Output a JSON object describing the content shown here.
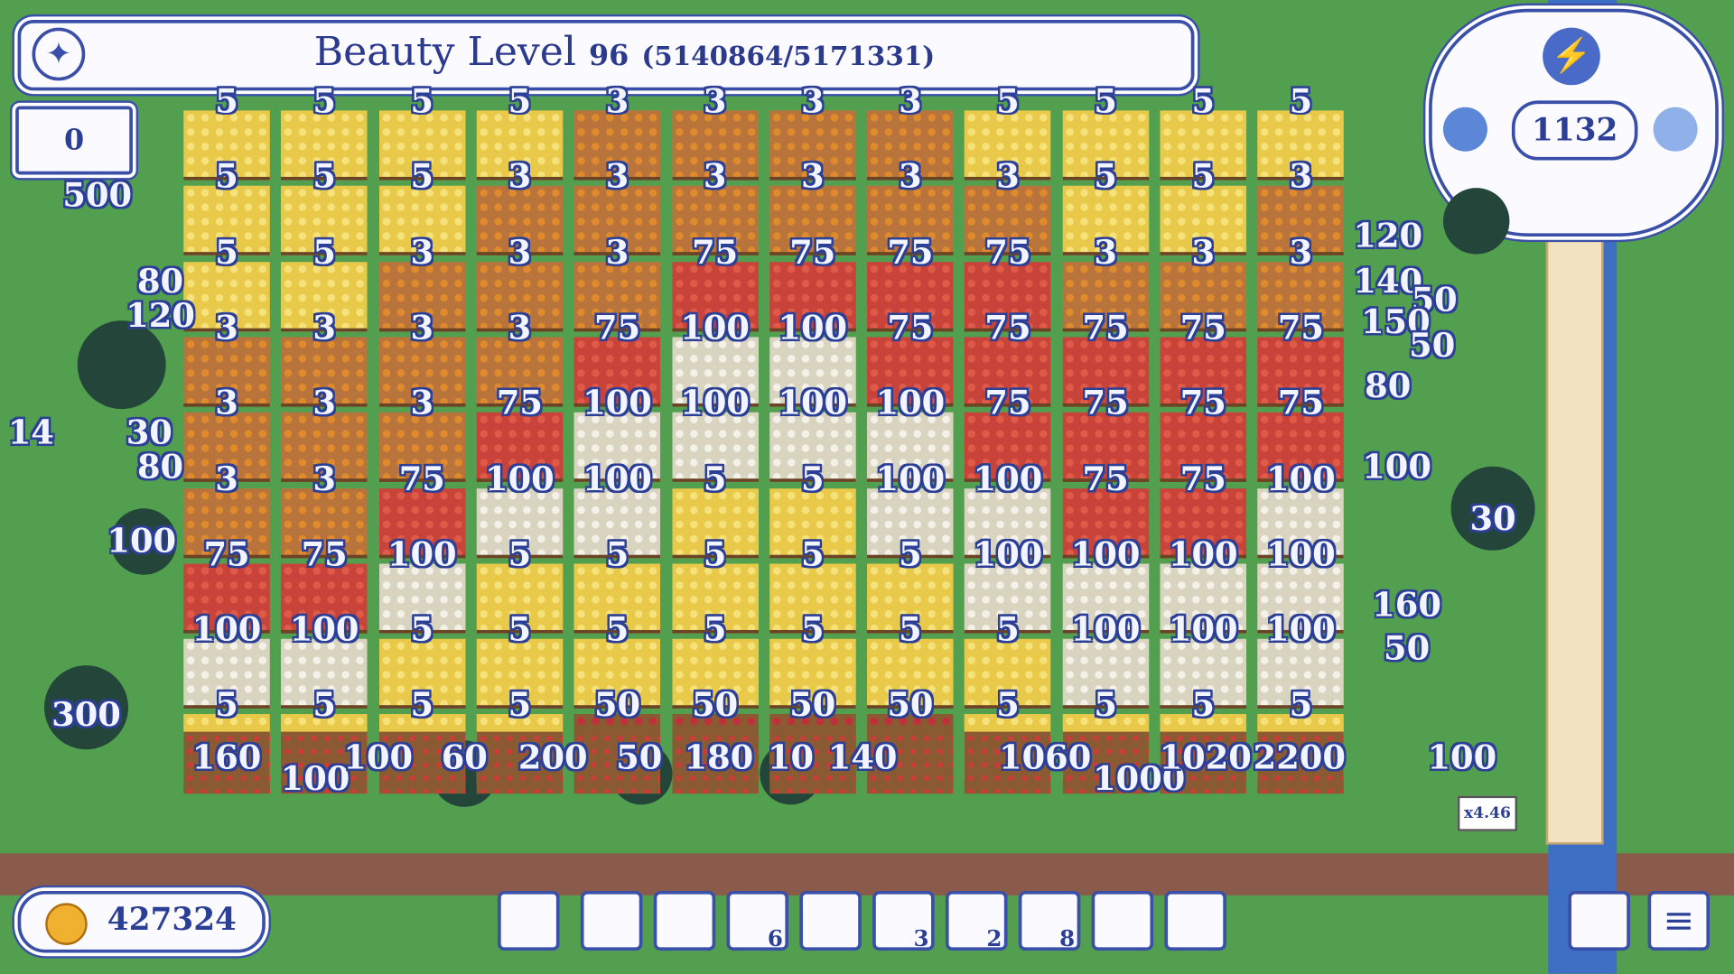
{
  "header": {
    "title": "Beauty Level",
    "level": "96",
    "progress": "(5140864/5171331)"
  },
  "counter": "0",
  "energy": "1132",
  "coins": "427324",
  "multiplier": "x4.46",
  "toolbar": {
    "counts": [
      "6",
      "3",
      "2",
      "8"
    ]
  },
  "grid": {
    "rows": [
      [
        5,
        5,
        5,
        5,
        3,
        3,
        3,
        3,
        5,
        5,
        5,
        5
      ],
      [
        5,
        5,
        5,
        3,
        3,
        3,
        3,
        3,
        3,
        5,
        5,
        3
      ],
      [
        5,
        5,
        3,
        3,
        3,
        75,
        75,
        75,
        75,
        3,
        3,
        3
      ],
      [
        3,
        3,
        3,
        3,
        75,
        100,
        100,
        75,
        75,
        75,
        75,
        75
      ],
      [
        3,
        3,
        3,
        75,
        100,
        100,
        100,
        100,
        75,
        75,
        75,
        75
      ],
      [
        3,
        3,
        75,
        100,
        100,
        5,
        5,
        100,
        100,
        75,
        75,
        100
      ],
      [
        75,
        75,
        100,
        5,
        5,
        5,
        5,
        5,
        100,
        100,
        100,
        100
      ],
      [
        100,
        100,
        5,
        5,
        5,
        5,
        5,
        5,
        5,
        100,
        100,
        100
      ],
      [
        5,
        5,
        5,
        5,
        50,
        50,
        50,
        50,
        5,
        5,
        5,
        5
      ]
    ]
  },
  "bottom_labels": [
    160,
    100,
    100,
    60,
    200,
    50,
    180,
    10,
    140,
    1060,
    1000,
    1020,
    2200
  ],
  "side_labels": [
    500,
    80,
    120,
    30,
    80,
    14,
    100,
    300,
    120,
    140,
    50,
    150,
    50,
    80,
    100,
    30,
    160,
    50,
    100
  ]
}
